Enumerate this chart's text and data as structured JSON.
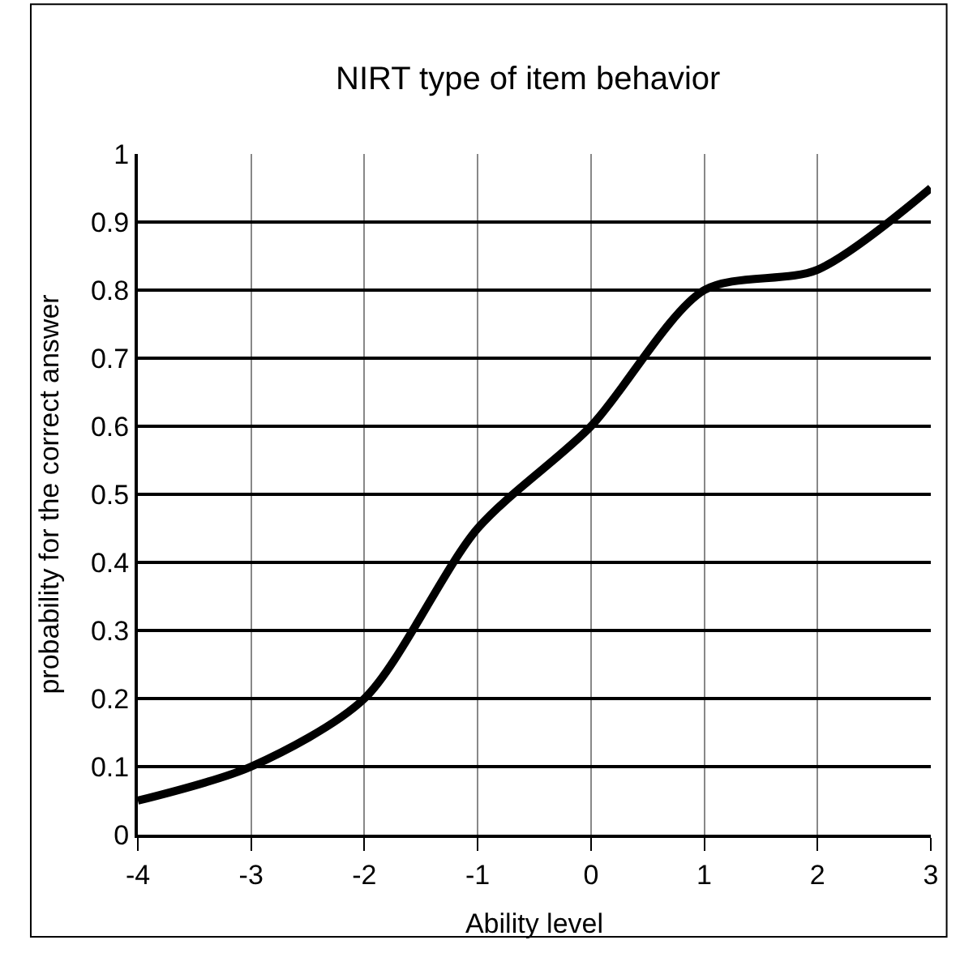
{
  "chart_data": {
    "type": "line",
    "title": "NIRT type of item behavior",
    "xlabel": "Ability level",
    "ylabel": "probability for the correct answer",
    "x": [
      -4,
      -3,
      -2,
      -1,
      0,
      1,
      2,
      3
    ],
    "series": [
      {
        "color": "#000000",
        "values": [
          0.05,
          0.1,
          0.2,
          0.45,
          0.6,
          0.8,
          0.83,
          0.95
        ]
      }
    ],
    "xlim": [
      -4,
      3
    ],
    "xticks": [
      -4,
      -3,
      -2,
      -1,
      0,
      1,
      2,
      3
    ],
    "ylim": [
      0,
      1
    ],
    "yticks": [
      0,
      0.1,
      0.2,
      0.3,
      0.4,
      0.5,
      0.6,
      0.7,
      0.8,
      0.9,
      1
    ],
    "grid": true,
    "marker": "none",
    "line_style": "solid"
  }
}
